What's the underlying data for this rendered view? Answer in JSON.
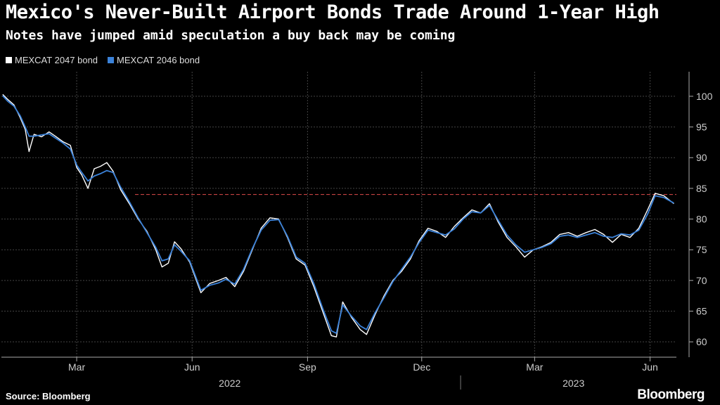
{
  "title": "Mexico's Never-Built Airport Bonds Trade Around 1-Year High",
  "subtitle": "Notes have jumped amid speculation a buy back may be coming",
  "source": "Source: Bloomberg",
  "brand": "Bloomberg",
  "colors": {
    "background": "#000000",
    "series_2047": "#ffffff",
    "series_2046": "#3b82d9",
    "reference": "#e04b4b"
  },
  "chart_data": {
    "type": "line",
    "ylim": [
      57.5,
      104
    ],
    "yticks": [
      60,
      65,
      70,
      75,
      80,
      85,
      90,
      95,
      100
    ],
    "xrange": [
      "2021-12-31",
      "2023-06-22"
    ],
    "xticks": [
      {
        "date": "2022-03-01",
        "label": "Mar"
      },
      {
        "date": "2022-06-01",
        "label": "Jun"
      },
      {
        "date": "2022-09-01",
        "label": "Sep"
      },
      {
        "date": "2022-12-01",
        "label": "Dec"
      },
      {
        "date": "2023-03-01",
        "label": "Mar"
      },
      {
        "date": "2023-06-01",
        "label": "Jun"
      }
    ],
    "years": [
      {
        "label": "2022",
        "date": "2022-07-01"
      },
      {
        "label": "2023",
        "date": "2023-04-01"
      }
    ],
    "year_divider": "2023-01-01",
    "reference_line": 84,
    "grid": true,
    "legend_position": "top-left",
    "series": [
      {
        "name": "MEXCAT 2047 bond",
        "color": "#ffffff",
        "points": [
          [
            "2022-01-01",
            100.3
          ],
          [
            "2022-01-05",
            99.5
          ],
          [
            "2022-01-10",
            98.6
          ],
          [
            "2022-01-15",
            96.5
          ],
          [
            "2022-01-19",
            94.6
          ],
          [
            "2022-01-22",
            91.0
          ],
          [
            "2022-01-26",
            93.8
          ],
          [
            "2022-02-01",
            93.4
          ],
          [
            "2022-02-07",
            94.2
          ],
          [
            "2022-02-12",
            93.5
          ],
          [
            "2022-02-18",
            92.6
          ],
          [
            "2022-02-24",
            92.0
          ],
          [
            "2022-03-01",
            88.4
          ],
          [
            "2022-03-05",
            87.2
          ],
          [
            "2022-03-10",
            85.0
          ],
          [
            "2022-03-15",
            88.2
          ],
          [
            "2022-03-20",
            88.6
          ],
          [
            "2022-03-25",
            89.2
          ],
          [
            "2022-03-30",
            87.8
          ],
          [
            "2022-04-05",
            84.8
          ],
          [
            "2022-04-12",
            82.5
          ],
          [
            "2022-04-19",
            80.0
          ],
          [
            "2022-04-26",
            78.0
          ],
          [
            "2022-05-03",
            75.0
          ],
          [
            "2022-05-08",
            72.2
          ],
          [
            "2022-05-13",
            72.8
          ],
          [
            "2022-05-18",
            76.3
          ],
          [
            "2022-05-23",
            75.2
          ],
          [
            "2022-05-30",
            73.0
          ],
          [
            "2022-06-08",
            68.0
          ],
          [
            "2022-06-15",
            69.5
          ],
          [
            "2022-06-22",
            70.0
          ],
          [
            "2022-06-28",
            70.5
          ],
          [
            "2022-07-05",
            69.0
          ],
          [
            "2022-07-12",
            71.5
          ],
          [
            "2022-07-19",
            75.0
          ],
          [
            "2022-07-26",
            78.5
          ],
          [
            "2022-08-02",
            80.2
          ],
          [
            "2022-08-09",
            80.0
          ],
          [
            "2022-08-16",
            77.0
          ],
          [
            "2022-08-23",
            73.5
          ],
          [
            "2022-08-30",
            72.5
          ],
          [
            "2022-09-06",
            69.0
          ],
          [
            "2022-09-13",
            65.0
          ],
          [
            "2022-09-20",
            61.0
          ],
          [
            "2022-09-24",
            60.8
          ],
          [
            "2022-09-29",
            66.5
          ],
          [
            "2022-10-06",
            64.0
          ],
          [
            "2022-10-13",
            62.0
          ],
          [
            "2022-10-18",
            61.2
          ],
          [
            "2022-10-25",
            64.5
          ],
          [
            "2022-11-01",
            67.5
          ],
          [
            "2022-11-08",
            70.0
          ],
          [
            "2022-11-15",
            71.5
          ],
          [
            "2022-11-22",
            73.5
          ],
          [
            "2022-11-29",
            76.5
          ],
          [
            "2022-12-06",
            78.5
          ],
          [
            "2022-12-13",
            78.0
          ],
          [
            "2022-12-20",
            77.0
          ],
          [
            "2022-12-27",
            78.8
          ],
          [
            "2023-01-03",
            80.2
          ],
          [
            "2023-01-10",
            81.5
          ],
          [
            "2023-01-17",
            81.0
          ],
          [
            "2023-01-24",
            82.5
          ],
          [
            "2023-01-31",
            79.5
          ],
          [
            "2023-02-07",
            77.0
          ],
          [
            "2023-02-14",
            75.5
          ],
          [
            "2023-02-21",
            73.8
          ],
          [
            "2023-02-28",
            75.0
          ],
          [
            "2023-03-07",
            75.5
          ],
          [
            "2023-03-14",
            76.2
          ],
          [
            "2023-03-21",
            77.5
          ],
          [
            "2023-03-28",
            77.8
          ],
          [
            "2023-04-04",
            77.2
          ],
          [
            "2023-04-11",
            77.8
          ],
          [
            "2023-04-18",
            78.3
          ],
          [
            "2023-04-25",
            77.5
          ],
          [
            "2023-05-02",
            76.2
          ],
          [
            "2023-05-09",
            77.5
          ],
          [
            "2023-05-16",
            77.0
          ],
          [
            "2023-05-23",
            78.5
          ],
          [
            "2023-05-30",
            81.5
          ],
          [
            "2023-06-05",
            84.2
          ],
          [
            "2023-06-12",
            83.8
          ],
          [
            "2023-06-20",
            82.5
          ]
        ]
      },
      {
        "name": "MEXCAT 2046 bond",
        "color": "#3b82d9",
        "points": [
          [
            "2022-01-01",
            100.1
          ],
          [
            "2022-01-05",
            99.2
          ],
          [
            "2022-01-10",
            98.4
          ],
          [
            "2022-01-15",
            96.8
          ],
          [
            "2022-01-19",
            95.0
          ],
          [
            "2022-01-22",
            93.5
          ],
          [
            "2022-01-26",
            93.5
          ],
          [
            "2022-02-01",
            93.7
          ],
          [
            "2022-02-07",
            93.9
          ],
          [
            "2022-02-12",
            93.2
          ],
          [
            "2022-02-18",
            92.4
          ],
          [
            "2022-02-24",
            91.4
          ],
          [
            "2022-03-01",
            88.8
          ],
          [
            "2022-03-05",
            87.6
          ],
          [
            "2022-03-10",
            86.2
          ],
          [
            "2022-03-15",
            87.0
          ],
          [
            "2022-03-20",
            87.4
          ],
          [
            "2022-03-25",
            87.9
          ],
          [
            "2022-03-30",
            87.6
          ],
          [
            "2022-04-05",
            85.2
          ],
          [
            "2022-04-12",
            82.8
          ],
          [
            "2022-04-19",
            80.2
          ],
          [
            "2022-04-26",
            77.8
          ],
          [
            "2022-05-03",
            75.4
          ],
          [
            "2022-05-08",
            73.2
          ],
          [
            "2022-05-13",
            73.5
          ],
          [
            "2022-05-18",
            75.8
          ],
          [
            "2022-05-23",
            74.8
          ],
          [
            "2022-05-30",
            73.2
          ],
          [
            "2022-06-08",
            68.4
          ],
          [
            "2022-06-15",
            69.2
          ],
          [
            "2022-06-22",
            69.6
          ],
          [
            "2022-06-28",
            70.2
          ],
          [
            "2022-07-05",
            69.4
          ],
          [
            "2022-07-12",
            71.8
          ],
          [
            "2022-07-19",
            75.2
          ],
          [
            "2022-07-26",
            78.2
          ],
          [
            "2022-08-02",
            79.8
          ],
          [
            "2022-08-09",
            79.9
          ],
          [
            "2022-08-16",
            77.2
          ],
          [
            "2022-08-23",
            73.8
          ],
          [
            "2022-08-30",
            72.8
          ],
          [
            "2022-09-06",
            69.5
          ],
          [
            "2022-09-13",
            65.5
          ],
          [
            "2022-09-20",
            61.8
          ],
          [
            "2022-09-24",
            61.4
          ],
          [
            "2022-09-29",
            66.0
          ],
          [
            "2022-10-06",
            64.2
          ],
          [
            "2022-10-13",
            62.6
          ],
          [
            "2022-10-18",
            62.0
          ],
          [
            "2022-10-25",
            64.8
          ],
          [
            "2022-11-01",
            67.2
          ],
          [
            "2022-11-08",
            69.8
          ],
          [
            "2022-11-15",
            71.8
          ],
          [
            "2022-11-22",
            73.8
          ],
          [
            "2022-11-29",
            76.2
          ],
          [
            "2022-12-06",
            78.2
          ],
          [
            "2022-12-13",
            77.8
          ],
          [
            "2022-12-20",
            77.4
          ],
          [
            "2022-12-27",
            78.4
          ],
          [
            "2023-01-03",
            80.0
          ],
          [
            "2023-01-10",
            81.2
          ],
          [
            "2023-01-17",
            81.0
          ],
          [
            "2023-01-24",
            82.2
          ],
          [
            "2023-01-31",
            79.8
          ],
          [
            "2023-02-07",
            77.4
          ],
          [
            "2023-02-14",
            75.8
          ],
          [
            "2023-02-21",
            74.6
          ],
          [
            "2023-02-28",
            75.0
          ],
          [
            "2023-03-07",
            75.4
          ],
          [
            "2023-03-14",
            76.0
          ],
          [
            "2023-03-21",
            77.2
          ],
          [
            "2023-03-28",
            77.4
          ],
          [
            "2023-04-04",
            77.0
          ],
          [
            "2023-04-11",
            77.4
          ],
          [
            "2023-04-18",
            77.8
          ],
          [
            "2023-04-25",
            77.2
          ],
          [
            "2023-05-02",
            77.0
          ],
          [
            "2023-05-09",
            77.6
          ],
          [
            "2023-05-16",
            77.4
          ],
          [
            "2023-05-23",
            78.2
          ],
          [
            "2023-05-30",
            80.8
          ],
          [
            "2023-06-05",
            83.8
          ],
          [
            "2023-06-12",
            83.5
          ],
          [
            "2023-06-20",
            82.6
          ]
        ]
      }
    ]
  }
}
